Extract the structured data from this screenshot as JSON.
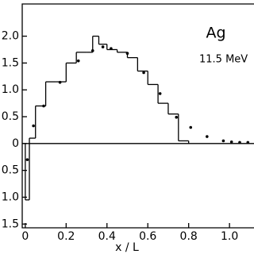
{
  "chart_data": {
    "type": "histogram",
    "annotations": [
      "Ag",
      "11.5 MeV"
    ],
    "xlabel": "x / L",
    "xlim": [
      -0.015,
      1.12
    ],
    "xticks": [
      0,
      0.2,
      0.4,
      0.6,
      0.8,
      {
        "value": 1,
        "label": "1.0"
      }
    ],
    "ylim": [
      -1.57,
      2.6
    ],
    "yticks": [
      {
        "value": -1.5,
        "label": "1.5"
      },
      {
        "value": -1,
        "label": "1.0"
      },
      {
        "value": -0.5,
        "label": "0.5"
      },
      0,
      0.5,
      {
        "value": 1,
        "label": "1.0"
      },
      1.5,
      {
        "value": 2,
        "label": "2.0"
      }
    ],
    "color": "#000000",
    "bins": [
      0,
      0.02,
      0.05,
      0.1,
      0.15,
      0.2,
      0.25,
      0.3,
      0.33,
      0.36,
      0.4,
      0.45,
      0.5,
      0.55,
      0.6,
      0.65,
      0.7,
      0.75,
      0.8
    ],
    "values": [
      -1.05,
      0.1,
      0.7,
      1.15,
      1.15,
      1.5,
      1.7,
      1.7,
      2.0,
      1.85,
      1.75,
      1.7,
      1.6,
      1.35,
      1.1,
      0.75,
      0.55,
      0.05
    ],
    "points": {
      "x": [
        0.01,
        0.04,
        0.09,
        0.17,
        0.26,
        0.33,
        0.38,
        0.42,
        0.5,
        0.58,
        0.66,
        0.74,
        0.81,
        0.89,
        0.97,
        1.01,
        1.05,
        1.09
      ],
      "y": [
        -0.3,
        0.33,
        0.7,
        1.14,
        1.54,
        1.73,
        1.8,
        1.77,
        1.68,
        1.32,
        0.93,
        0.49,
        0.3,
        0.13,
        0.05,
        0.03,
        0.02,
        0.02
      ]
    }
  }
}
